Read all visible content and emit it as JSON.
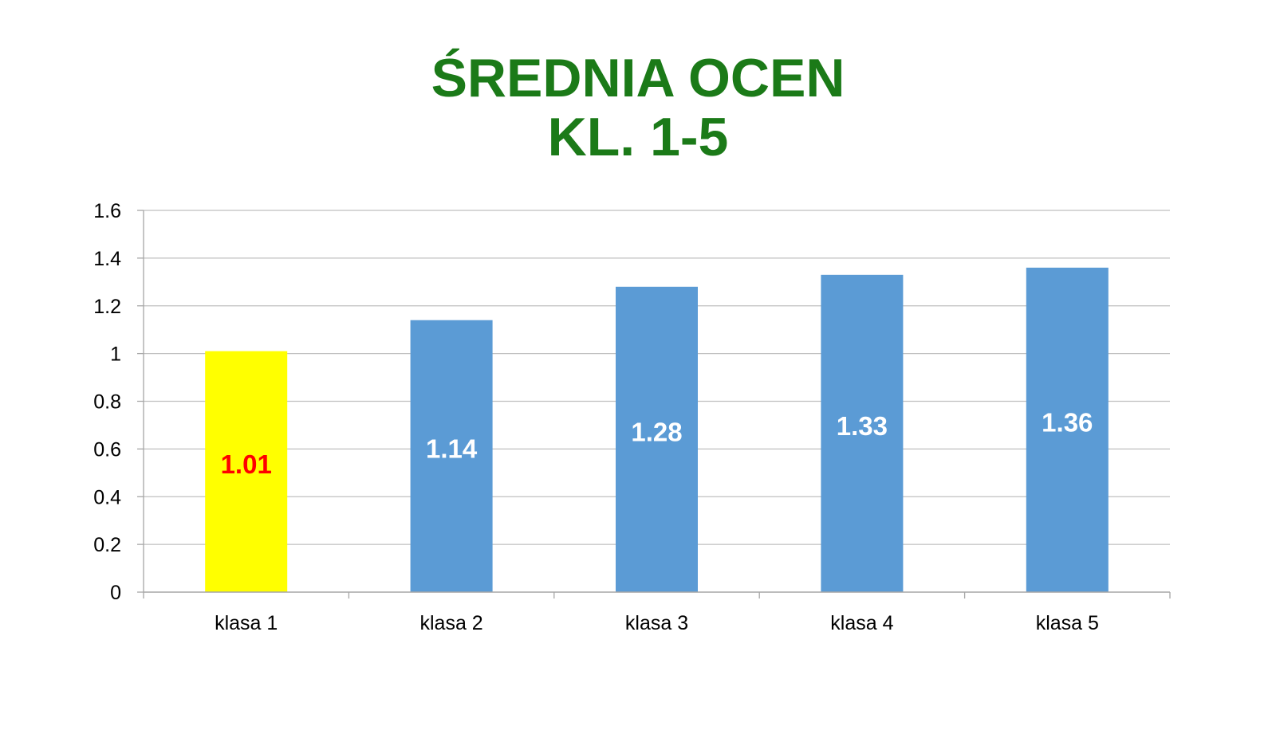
{
  "chart_data": {
    "type": "bar",
    "title": "ŚREDNIA OCEN",
    "subtitle": "KL. 1-5",
    "categories": [
      "klasa 1",
      "klasa 2",
      "klasa 3",
      "klasa 4",
      "klasa 5"
    ],
    "values": [
      1.01,
      1.14,
      1.28,
      1.33,
      1.36
    ],
    "data_labels": [
      "1.01",
      "1.14",
      "1.28",
      "1.33",
      "1.36"
    ],
    "xlabel": "",
    "ylabel": "",
    "ylim": [
      0,
      1.6
    ],
    "yticks": [
      "0",
      "0.2",
      "0.4",
      "0.6",
      "0.8",
      "1",
      "1.2",
      "1.4",
      "1.6"
    ],
    "grid": true,
    "legend": "none",
    "colors": {
      "title": "#1b7a18",
      "bar": "#5b9bd5",
      "highlight_bar": "#ffff00",
      "label_on_bar": "#ffffff",
      "label_on_highlight": "#ff0000",
      "grid": "#bfbfbf",
      "axis": "#a6a6a6"
    },
    "highlight_index": 0
  }
}
